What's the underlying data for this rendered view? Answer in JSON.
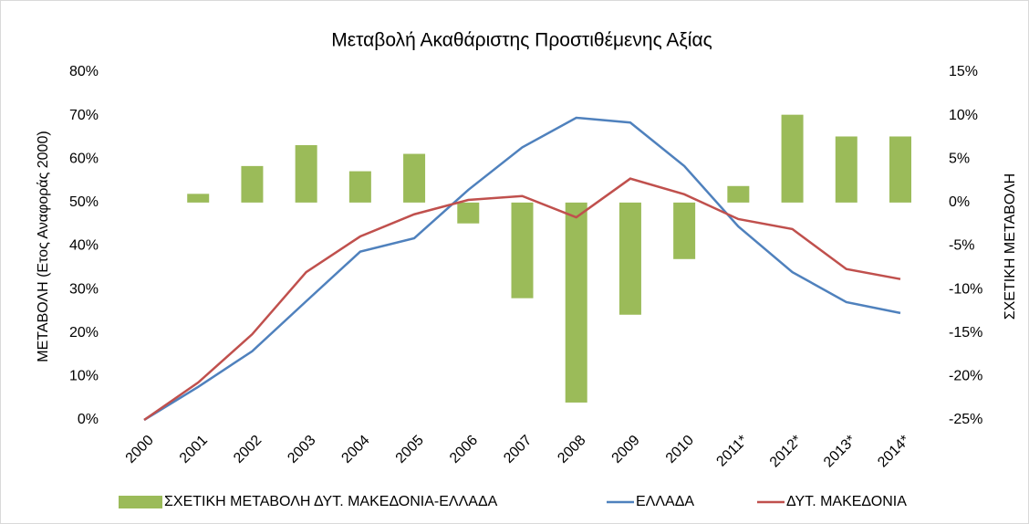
{
  "chart_data": {
    "type": "combo",
    "title": "Μεταβολή Ακαθάριστης Προστιθέμενης Αξίας",
    "y_label": "ΜΕΤΑΒΟΛΗ (Ετος Αναφοράς 2000)",
    "y2_label": "ΣΧΕΤΙΚΗ ΜΕΤΑΒΟΛΗ",
    "categories": [
      "2000",
      "2001",
      "2002",
      "2003",
      "2004",
      "2005",
      "2006",
      "2007",
      "2008",
      "2009",
      "2010",
      "2011*",
      "2012*",
      "2013*",
      "2014*"
    ],
    "ylim": [
      0,
      80
    ],
    "yticks": [
      {
        "value": 0,
        "label": "0%"
      },
      {
        "value": 10,
        "label": "10%"
      },
      {
        "value": 20,
        "label": "20%"
      },
      {
        "value": 30,
        "label": "30%"
      },
      {
        "value": 40,
        "label": "40%"
      },
      {
        "value": 50,
        "label": "50%"
      },
      {
        "value": 60,
        "label": "60%"
      },
      {
        "value": 70,
        "label": "70%"
      },
      {
        "value": 80,
        "label": "80%"
      }
    ],
    "y2lim": [
      -25,
      15
    ],
    "y2ticks": [
      {
        "value": -25,
        "label": "-25%"
      },
      {
        "value": -20,
        "label": "-20%"
      },
      {
        "value": -15,
        "label": "-15%"
      },
      {
        "value": -10,
        "label": "-10%"
      },
      {
        "value": -5,
        "label": "-5%"
      },
      {
        "value": 0,
        "label": "0%"
      },
      {
        "value": 5,
        "label": "5%"
      },
      {
        "value": 10,
        "label": "10%"
      },
      {
        "value": 15,
        "label": "15%"
      }
    ],
    "grid": false,
    "legend": "bottom",
    "series": [
      {
        "name": "ΣΧΕΤΙΚΗ ΜΕΤΑΒΟΛΗ ΔΥΤ. ΜΑΚΕΔΟΝΙΑ-ΕΛΛΑΔΑ",
        "type": "bar",
        "axis": "y2",
        "color": "#9bbb59",
        "values": [
          null,
          1.0,
          4.2,
          6.6,
          3.6,
          5.6,
          -2.4,
          -11.0,
          -23.0,
          -12.9,
          -6.5,
          1.9,
          10.1,
          7.6,
          7.6
        ]
      },
      {
        "name": "ΕΛΛΑΔΑ",
        "type": "line",
        "axis": "y",
        "color": "#4f81bd",
        "values": [
          0,
          7.6,
          15.8,
          27.3,
          38.7,
          41.8,
          52.9,
          62.7,
          69.5,
          68.4,
          58.4,
          44.5,
          34.0,
          27.1,
          24.6
        ]
      },
      {
        "name": "ΔΥΤ. ΜΑΚΕΔΟΝΙΑ",
        "type": "line",
        "axis": "y",
        "color": "#c0504d",
        "values": [
          0,
          8.6,
          19.7,
          34.0,
          42.2,
          47.3,
          50.6,
          51.5,
          46.6,
          55.5,
          51.9,
          46.2,
          43.9,
          34.7,
          32.4
        ]
      }
    ]
  }
}
